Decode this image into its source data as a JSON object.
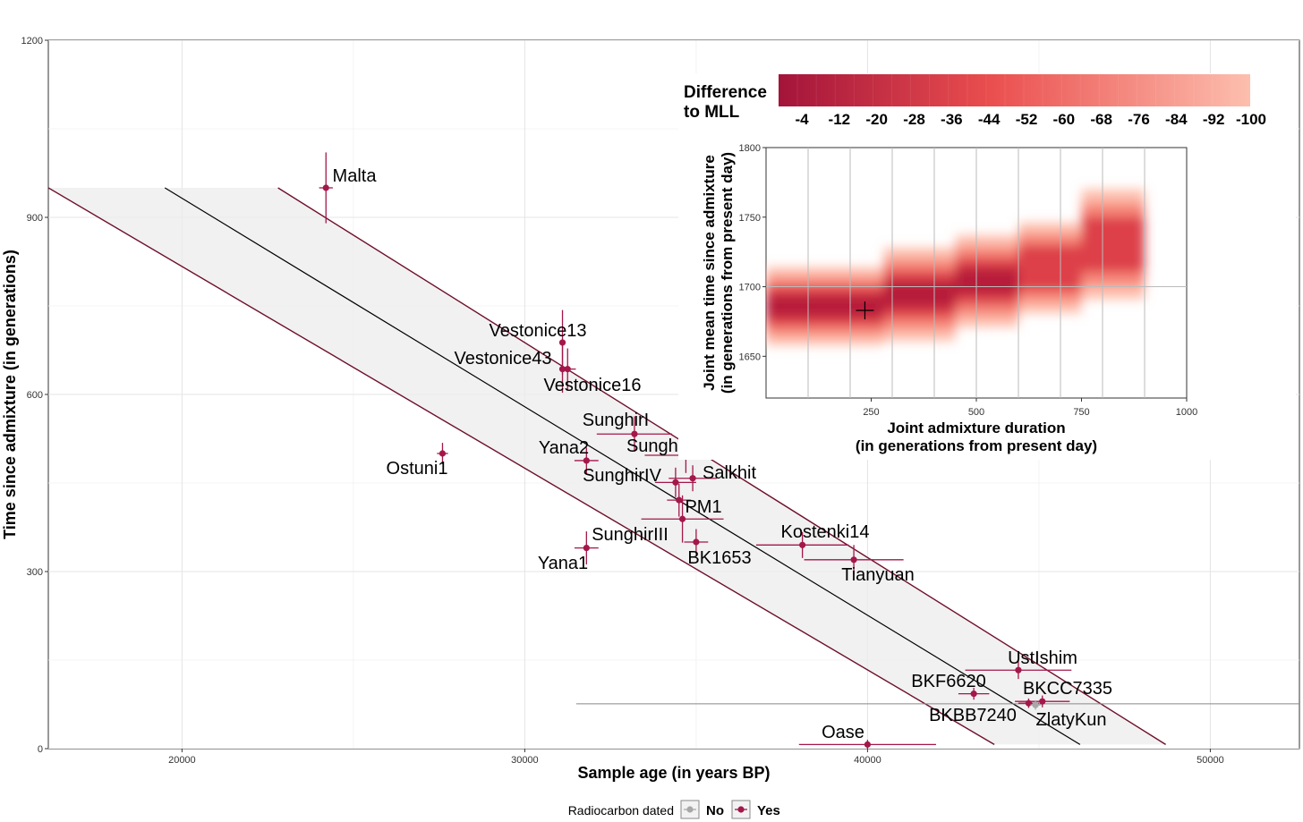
{
  "chart_data": [
    {
      "type": "scatter",
      "title": "",
      "xlabel": "Sample age (in years BP)",
      "ylabel": "Time since admixture (in generations)",
      "xlim": [
        16100,
        52600
      ],
      "ylim": [
        0,
        1200
      ],
      "x_ticks": [
        20000,
        30000,
        40000,
        50000
      ],
      "x_tick_labels": [
        "20000",
        "30000",
        "40000",
        "50000"
      ],
      "y_ticks": [
        0,
        300,
        600,
        900,
        1200
      ],
      "y_tick_labels": [
        "0",
        "300",
        "600",
        "900",
        "1200"
      ],
      "grid": true,
      "reference_lines": {
        "center": [
          [
            19500,
            950
          ],
          [
            46200,
            7
          ]
        ],
        "lower": [
          [
            16100,
            950
          ],
          [
            43700,
            7
          ]
        ],
        "upper": [
          [
            22800,
            950
          ],
          [
            48700,
            7
          ]
        ],
        "band_top_y": 950
      },
      "horizontal_line": {
        "y": 76,
        "x_from": 31500
      },
      "points": [
        {
          "label": "Malta",
          "x": 24200,
          "y": 950,
          "x_err": 200,
          "y_err": 60,
          "radiocarbon": "Yes"
        },
        {
          "label": "Vestonice13",
          "x": 31100,
          "y": 688,
          "x_err": 80,
          "y_err": 55,
          "radiocarbon": "Yes"
        },
        {
          "label": "Vestonice43",
          "x": 31100,
          "y": 643,
          "x_err": 80,
          "y_err": 40,
          "radiocarbon": "Yes"
        },
        {
          "label": "Vestonice16",
          "x": 31250,
          "y": 643,
          "x_err": 240,
          "y_err": 35,
          "radiocarbon": "Yes"
        },
        {
          "label": "Ostuni1",
          "x": 27600,
          "y": 500,
          "x_err": 160,
          "y_err": 18,
          "radiocarbon": "Yes"
        },
        {
          "label": "SunghirI",
          "x": 33200,
          "y": 533,
          "x_err": 1100,
          "y_err": 30,
          "radiocarbon": "Yes"
        },
        {
          "label": "Yana2",
          "x": 31800,
          "y": 488,
          "x_err": 350,
          "y_err": 22,
          "radiocarbon": "Yes"
        },
        {
          "label": "SunghirII",
          "x": 34700,
          "y": 497,
          "x_err": 1200,
          "y_err": 30,
          "radiocarbon": "Yes"
        },
        {
          "label": "Salkhit",
          "x": 34900,
          "y": 458,
          "x_err": 700,
          "y_err": 22,
          "radiocarbon": "Yes"
        },
        {
          "label": "SunghirIV",
          "x": 34400,
          "y": 451,
          "x_err": 600,
          "y_err": 25,
          "radiocarbon": "Yes"
        },
        {
          "label": "PM1",
          "x": 34500,
          "y": 421,
          "x_err": 350,
          "y_err": 28,
          "radiocarbon": "Yes"
        },
        {
          "label": "SunghirIII",
          "x": 34600,
          "y": 389,
          "x_err": 1200,
          "y_err": 40,
          "radiocarbon": "Yes"
        },
        {
          "label": "Yana1",
          "x": 31800,
          "y": 340,
          "x_err": 350,
          "y_err": 28,
          "radiocarbon": "Yes"
        },
        {
          "label": "BK1653",
          "x": 35000,
          "y": 350,
          "x_err": 350,
          "y_err": 22,
          "radiocarbon": "Yes"
        },
        {
          "label": "Kostenki14",
          "x": 38100,
          "y": 345,
          "x_err": 1350,
          "y_err": 22,
          "radiocarbon": "Yes"
        },
        {
          "label": "Tianyuan",
          "x": 39600,
          "y": 320,
          "x_err": 1450,
          "y_err": 25,
          "radiocarbon": "Yes"
        },
        {
          "label": "UstIshim",
          "x": 44400,
          "y": 133,
          "x_err": 1550,
          "y_err": 15,
          "radiocarbon": "Yes"
        },
        {
          "label": "BKF6620",
          "x": 43100,
          "y": 93,
          "x_err": 450,
          "y_err": 10,
          "radiocarbon": "Yes"
        },
        {
          "label": "BKCC7335",
          "x": 45100,
          "y": 80,
          "x_err": 800,
          "y_err": 10,
          "radiocarbon": "Yes"
        },
        {
          "label": "BKBB7240",
          "x": 44700,
          "y": 77,
          "x_err": 300,
          "y_err": 8,
          "radiocarbon": "Yes"
        },
        {
          "label": "ZlatyKun",
          "x": 44900,
          "y": 74,
          "x_err": 150,
          "y_err": 8,
          "radiocarbon": "No"
        },
        {
          "label": "Oase",
          "x": 40000,
          "y": 7,
          "x_err": 2000,
          "y_err": 8,
          "radiocarbon": "Yes"
        }
      ],
      "legend": {
        "title": "Radiocarbon dated",
        "entries": [
          "No",
          "Yes"
        ],
        "colors": {
          "No": "#a8a8a8",
          "Yes": "#a3174a"
        },
        "placement": "bottom-center"
      }
    },
    {
      "type": "heatmap",
      "xlabel": "Joint admixture duration",
      "xlabel2": "(in generations from present day)",
      "ylabel": "Joint mean time since admixture",
      "ylabel2": "(in generations from present day)",
      "xlim": [
        0,
        1000
      ],
      "ylim": [
        1620,
        1800
      ],
      "x_ticks": [
        250,
        500,
        750,
        1000
      ],
      "x_tick_labels": [
        "250",
        "500",
        "750",
        "1000"
      ],
      "y_ticks": [
        1650,
        1700,
        1750,
        1800
      ],
      "y_tick_labels": [
        "1650",
        "1700",
        "1750",
        "1800"
      ],
      "mle_marker": {
        "x": 235,
        "y": 1683
      },
      "region_bands": [
        {
          "x": [
            0,
            280
          ],
          "y": [
            1658,
            1714
          ]
        },
        {
          "x": [
            280,
            450
          ],
          "y": [
            1661,
            1728
          ]
        },
        {
          "x": [
            450,
            600
          ],
          "y": [
            1671,
            1737
          ]
        },
        {
          "x": [
            600,
            750
          ],
          "y": [
            1681,
            1746
          ]
        },
        {
          "x": [
            750,
            900
          ],
          "y": [
            1691,
            1770
          ]
        }
      ],
      "colorbar": {
        "title": "Difference to MLL",
        "tick_labels": [
          "-4",
          "-12",
          "-20",
          "-28",
          "-36",
          "-44",
          "-52",
          "-60",
          "-68",
          "-76",
          "-84",
          "-92",
          "-100"
        ],
        "color_from": "#a3143a",
        "color_to": "#fdbfae",
        "placement": "top-right inset"
      }
    }
  ]
}
